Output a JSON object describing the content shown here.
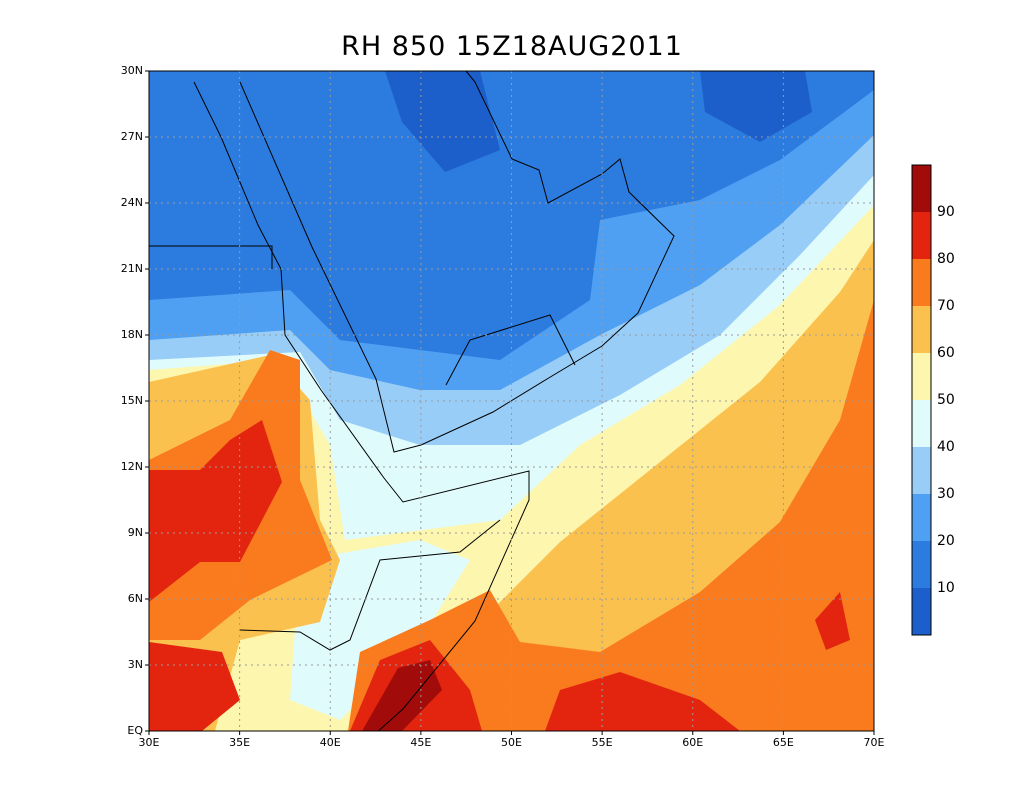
{
  "title": "RH 850 15Z18AUG2011",
  "map": {
    "lon_labels": [
      "30E",
      "35E",
      "40E",
      "45E",
      "50E",
      "55E",
      "60E",
      "65E",
      "70E"
    ],
    "lat_labels": [
      "EQ",
      "3N",
      "6N",
      "9N",
      "12N",
      "15N",
      "18N",
      "21N",
      "24N",
      "27N",
      "30N"
    ]
  },
  "colorbar": {
    "labels": [
      "10",
      "20",
      "30",
      "40",
      "50",
      "60",
      "70",
      "80",
      "90"
    ],
    "colors": [
      "#1c5fca",
      "#2c7ce0",
      "#4f9ff2",
      "#98cdf8",
      "#e0fbfc",
      "#fdf6ae",
      "#fbc14f",
      "#f97b1e",
      "#e3250f",
      "#a10c0a"
    ]
  }
}
